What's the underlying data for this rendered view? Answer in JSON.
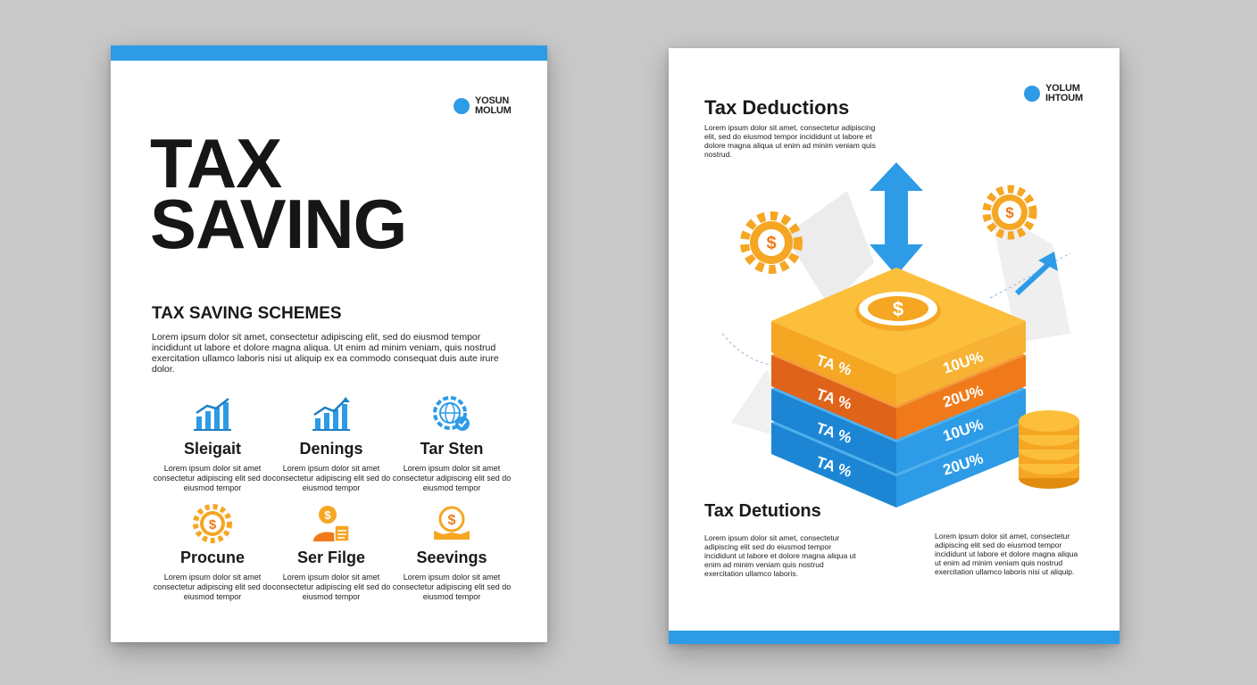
{
  "left_page": {
    "logo": {
      "line1": "YOSUN",
      "line2": "MOLUM"
    },
    "title_line1": "TAX",
    "title_line2": "SAVING",
    "schemes_heading": "TAX SAVING SCHEMES",
    "schemes_text": "Lorem ipsum dolor sit amet, consectetur adipiscing elit, sed do eiusmod tempor incididunt ut labore et dolore magna aliqua. Ut enim ad minim veniam, quis nostrud exercitation ullamco laboris nisi ut aliquip ex ea commodo consequat duis aute irure dolor.",
    "features": [
      {
        "icon": "bar-chart-icon",
        "title": "Sleigait",
        "text": "Lorem ipsum dolor sit amet consectetur adipiscing elit sed do eiusmod tempor"
      },
      {
        "icon": "growth-chart-icon",
        "title": "Denings",
        "text": "Lorem ipsum dolor sit amet consectetur adipiscing elit sed do eiusmod tempor"
      },
      {
        "icon": "globe-gear-icon",
        "title": "Tar Sten",
        "text": "Lorem ipsum dolor sit amet consectetur adipiscing elit sed do eiusmod tempor"
      },
      {
        "icon": "dollar-gear-icon",
        "title": "Procune",
        "text": "Lorem ipsum dolor sit amet consectetur adipiscing elit sed do eiusmod tempor"
      },
      {
        "icon": "dollar-person-icon",
        "title": "Ser Filge",
        "text": "Lorem ipsum dolor sit amet consectetur adipiscing elit sed do eiusmod tempor"
      },
      {
        "icon": "dollar-book-icon",
        "title": "Seevings",
        "text": "Lorem ipsum dolor sit amet consectetur adipiscing elit sed do eiusmod tempor"
      }
    ]
  },
  "right_page": {
    "logo": {
      "line1": "YOLUM",
      "line2": "IHTOUM"
    },
    "deductions_heading": "Tax Deductions",
    "deductions_text": "Lorem ipsum dolor sit amet, consectetur adipiscing elit, sed do eiusmod tempor incididunt ut labore et dolore magna aliqua ut enim ad minim veniam quis nostrud.",
    "layers": [
      {
        "label": "TA %",
        "value": "10U%"
      },
      {
        "label": "TA %",
        "value": "20U%"
      },
      {
        "label": "TA %",
        "value": "10U%"
      },
      {
        "label": "TA %",
        "value": "20U%"
      }
    ],
    "dollar_sign": "$",
    "detutions_heading": "Tax Detutions",
    "col1_text": "Lorem ipsum dolor sit amet, consectetur adipiscing elit sed do eiusmod tempor incididunt ut labore et dolore magna aliqua ut enim ad minim veniam quis nostrud exercitation ullamco laboris.",
    "col2_text": "Lorem ipsum dolor sit amet, consectetur adipiscing elit sed do eiusmod tempor incididunt ut labore et dolore magna aliqua ut enim ad minim veniam quis nostrud exercitation ullamco laboris nisi ut aliquip."
  },
  "colors": {
    "accent_blue": "#2d9be6",
    "accent_orange": "#f5a623",
    "dark_orange": "#f07a1a",
    "page": "#ffffff",
    "background": "#c9c9c9"
  }
}
